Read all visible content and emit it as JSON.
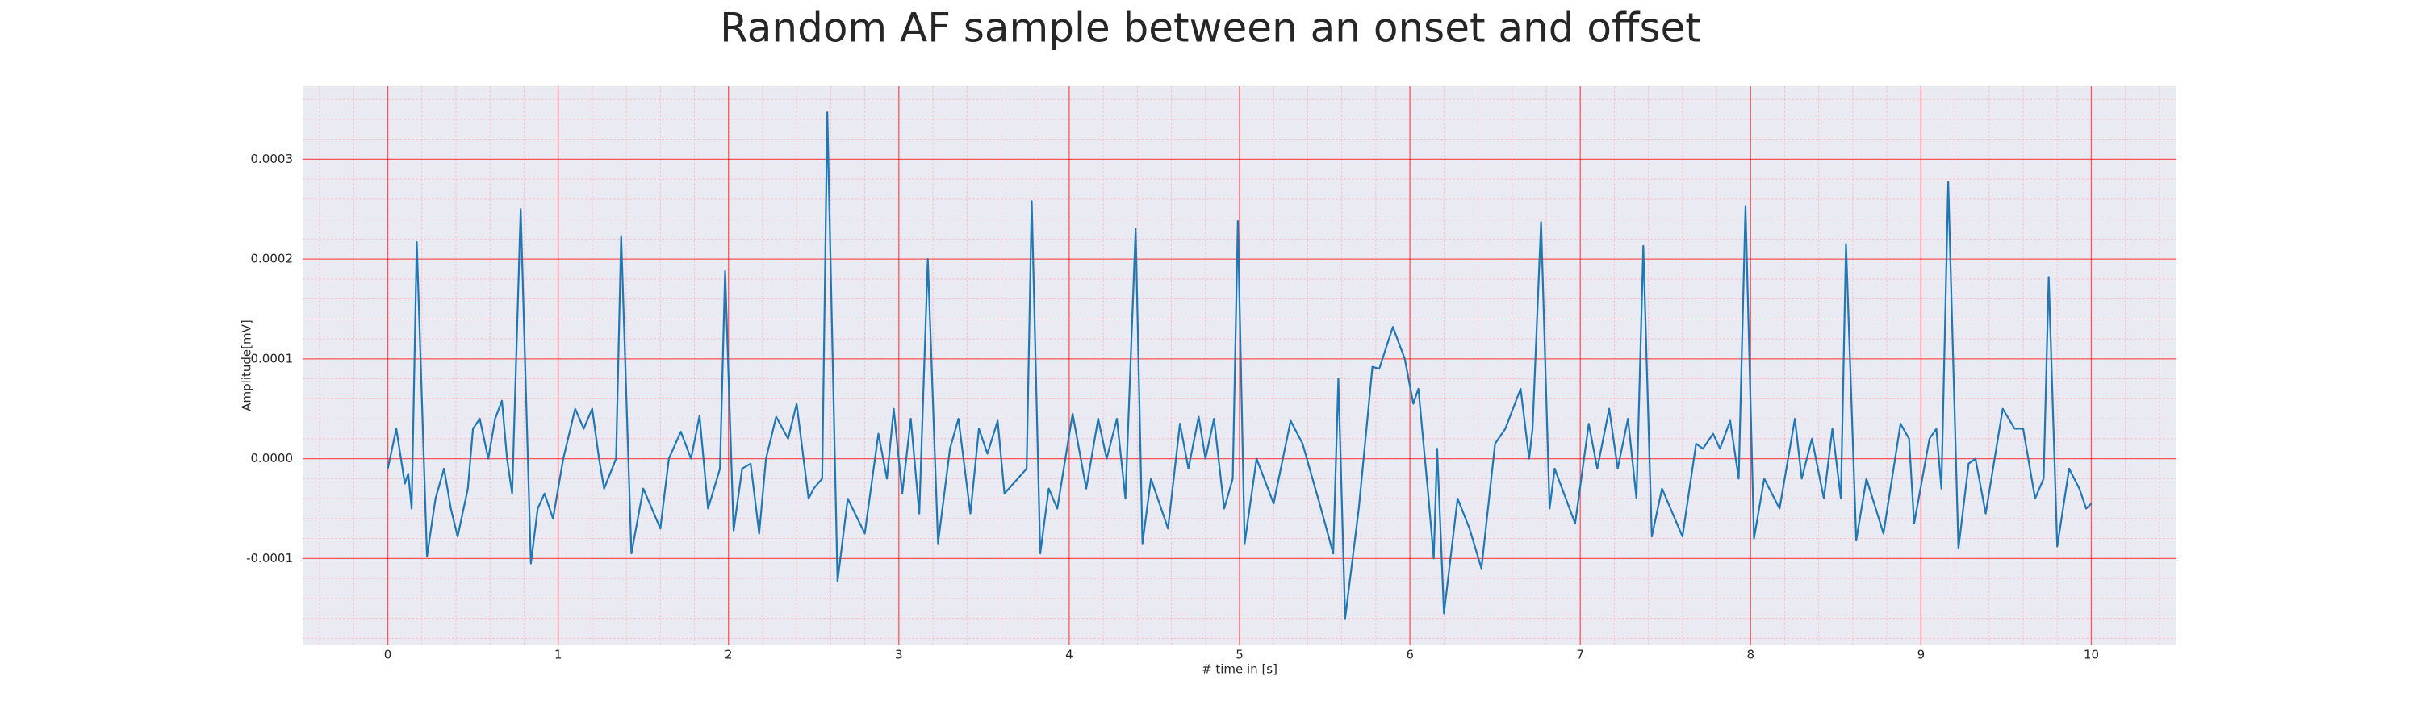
{
  "chart_data": {
    "type": "line",
    "title": "Random AF sample between an onset and offset",
    "x_label": "# time in [s]",
    "y_label": "Amplitude[mV]",
    "color": "#1f77b4",
    "grid": true,
    "minor_grid": {
      "x_step": 0.2,
      "y_step": 2e-05
    },
    "xlim": [
      -0.5,
      10.5
    ],
    "ylim": [
      -0.000187,
      0.000373
    ],
    "xticks": [
      0,
      1,
      2,
      3,
      4,
      5,
      6,
      7,
      8,
      9,
      10
    ],
    "yticks": [
      -0.0001,
      {
        "value": 0,
        "label": "0.0000"
      },
      0.0001,
      0.0002,
      0.0003
    ],
    "x": [
      0,
      0.05,
      0.1,
      0.12,
      0.14,
      0.17,
      0.23,
      0.28,
      0.33,
      0.37,
      0.41,
      0.47,
      0.5,
      0.54,
      0.59,
      0.63,
      0.67,
      0.7,
      0.73,
      0.78,
      0.84,
      0.88,
      0.92,
      0.97,
      1.03,
      1.1,
      1.15,
      1.2,
      1.24,
      1.27,
      1.34,
      1.37,
      1.43,
      1.5,
      1.6,
      1.65,
      1.72,
      1.78,
      1.83,
      1.88,
      1.95,
      1.98,
      2.03,
      2.08,
      2.13,
      2.18,
      2.22,
      2.28,
      2.35,
      2.4,
      2.47,
      2.5,
      2.55,
      2.58,
      2.64,
      2.7,
      2.8,
      2.88,
      2.93,
      2.97,
      3.02,
      3.07,
      3.12,
      3.17,
      3.23,
      3.3,
      3.35,
      3.42,
      3.47,
      3.52,
      3.58,
      3.62,
      3.75,
      3.78,
      3.83,
      3.88,
      3.93,
      4.02,
      4.1,
      4.17,
      4.22,
      4.28,
      4.33,
      4.39,
      4.43,
      4.48,
      4.58,
      4.65,
      4.7,
      4.76,
      4.8,
      4.85,
      4.91,
      4.96,
      4.99,
      5.03,
      5.1,
      5.2,
      5.3,
      5.37,
      5.47,
      5.55,
      5.58,
      5.62,
      5.7,
      5.78,
      5.82,
      5.9,
      5.97,
      6.02,
      6.05,
      6.11,
      6.14,
      6.16,
      6.2,
      6.28,
      6.35,
      6.42,
      6.5,
      6.56,
      6.65,
      6.7,
      6.72,
      6.77,
      6.82,
      6.85,
      6.97,
      7.05,
      7.1,
      7.17,
      7.22,
      7.28,
      7.33,
      7.37,
      7.42,
      7.48,
      7.6,
      7.68,
      7.72,
      7.78,
      7.82,
      7.88,
      7.93,
      7.97,
      8.02,
      8.08,
      8.17,
      8.26,
      8.3,
      8.36,
      8.43,
      8.48,
      8.53,
      8.56,
      8.62,
      8.68,
      8.78,
      8.88,
      8.93,
      8.96,
      9.05,
      9.09,
      9.12,
      9.16,
      9.22,
      9.28,
      9.32,
      9.38,
      9.48,
      9.55,
      9.6,
      9.67,
      9.72,
      9.75,
      9.8,
      9.87,
      9.93,
      9.97,
      10
    ],
    "values": [
      -1e-05,
      3e-05,
      -2.5e-05,
      -1.5e-05,
      -5e-05,
      0.000217,
      -9.8e-05,
      -4e-05,
      -1e-05,
      -5e-05,
      -7.8e-05,
      -3e-05,
      3e-05,
      4e-05,
      0,
      4e-05,
      5.8e-05,
      0,
      -3.5e-05,
      0.00025,
      -0.000105,
      -5e-05,
      -3.5e-05,
      -6e-05,
      0,
      5e-05,
      3e-05,
      5e-05,
      0,
      -3e-05,
      0,
      0.000223,
      -9.5e-05,
      -3e-05,
      -7e-05,
      0,
      2.7e-05,
      0,
      4.3e-05,
      -5e-05,
      -1e-05,
      0.000188,
      -7.2e-05,
      -1e-05,
      -5e-06,
      -7.5e-05,
      0,
      4.2e-05,
      2e-05,
      5.5e-05,
      -4e-05,
      -3e-05,
      -2e-05,
      0.000347,
      -0.000123,
      -4e-05,
      -7.5e-05,
      2.5e-05,
      -2e-05,
      5e-05,
      -3.5e-05,
      4e-05,
      -5.5e-05,
      0.0002,
      -8.5e-05,
      1e-05,
      4e-05,
      -5.5e-05,
      3e-05,
      5e-06,
      3.8e-05,
      -3.5e-05,
      -1e-05,
      0.000258,
      -9.5e-05,
      -3e-05,
      -5e-05,
      4.5e-05,
      -3e-05,
      4e-05,
      0,
      4e-05,
      -4e-05,
      0.00023,
      -8.5e-05,
      -2e-05,
      -7e-05,
      3.5e-05,
      -1e-05,
      4.2e-05,
      0,
      4e-05,
      -5e-05,
      -2e-05,
      0.000238,
      -8.5e-05,
      0,
      -4.5e-05,
      3.8e-05,
      1.5e-05,
      -4.5e-05,
      -9.5e-05,
      8e-05,
      -0.00016,
      -5e-05,
      9.2e-05,
      9e-05,
      0.000132,
      0.0001,
      5.5e-05,
      7e-05,
      -4e-05,
      -0.0001,
      1e-05,
      -0.000155,
      -4e-05,
      -7e-05,
      -0.00011,
      1.5e-05,
      3e-05,
      7e-05,
      0,
      3e-05,
      0.000237,
      -5e-05,
      -1e-05,
      -6.5e-05,
      3.5e-05,
      -1e-05,
      5e-05,
      -1e-05,
      4e-05,
      -4e-05,
      0.000213,
      -7.8e-05,
      -3e-05,
      -7.8e-05,
      1.5e-05,
      1e-05,
      2.5e-05,
      1e-05,
      3.8e-05,
      -2e-05,
      0.000253,
      -8e-05,
      -2e-05,
      -5e-05,
      4e-05,
      -2e-05,
      2e-05,
      -4e-05,
      3e-05,
      -4e-05,
      0.000215,
      -8.2e-05,
      -2e-05,
      -7.5e-05,
      3.5e-05,
      2e-05,
      -6.5e-05,
      2e-05,
      3e-05,
      -3e-05,
      0.000277,
      -9e-05,
      -5e-06,
      0,
      -5.5e-05,
      5e-05,
      3e-05,
      3e-05,
      -4e-05,
      -2e-05,
      0.000182,
      -8.8e-05,
      -1e-05,
      -3e-05,
      -5e-05,
      -4.5e-05
    ]
  }
}
